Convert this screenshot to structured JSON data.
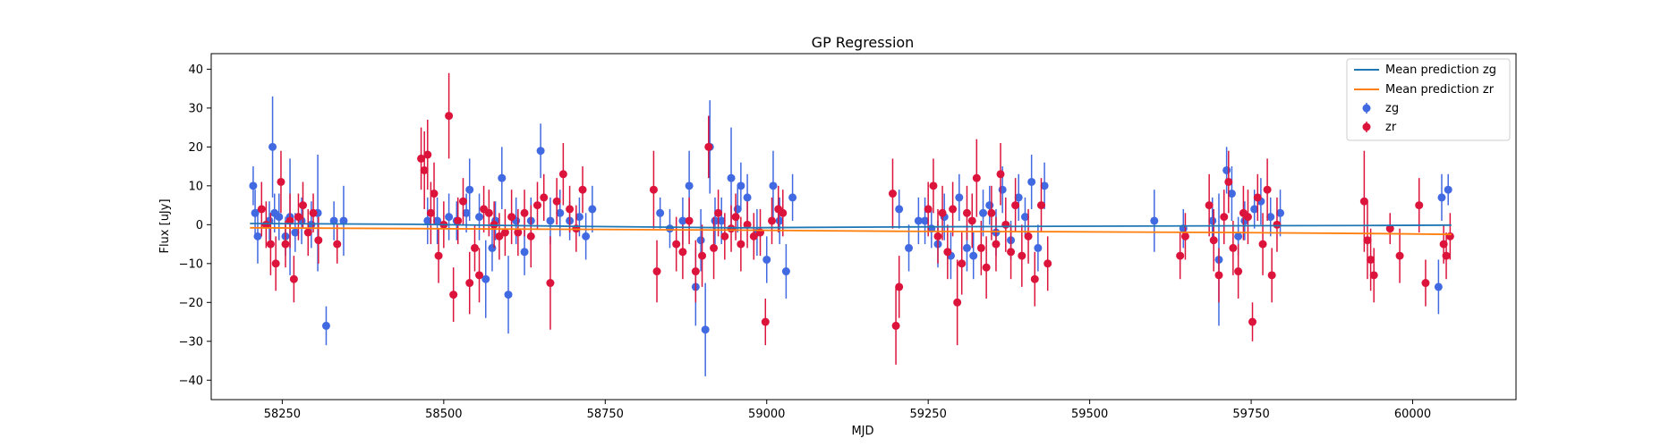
{
  "chart_data": {
    "type": "scatter",
    "title": "GP Regression",
    "xlabel": "MJD",
    "ylabel": "Flux [uJy]",
    "xlim": [
      58140,
      60160
    ],
    "ylim": [
      -45,
      44
    ],
    "xticks": [
      58250,
      58500,
      58750,
      59000,
      59250,
      59500,
      59750,
      60000
    ],
    "yticks": [
      -40,
      -30,
      -20,
      -10,
      0,
      10,
      20,
      30,
      40
    ],
    "legend_position": "top-right",
    "legend": [
      "Mean prediction zg",
      "Mean prediction zr",
      "zg",
      "zr"
    ],
    "colors": {
      "mean_zg": "#1f77b4",
      "mean_zr": "#ff7f0e",
      "zg": "#4169e1",
      "zr": "#dc143c"
    },
    "lines": [
      {
        "name": "Mean prediction zg",
        "x": [
          58200,
          58450,
          58700,
          58950,
          59200,
          59450,
          59700,
          59950,
          60060
        ],
        "y": [
          0.3,
          0.1,
          -0.4,
          -0.8,
          -0.6,
          -0.4,
          -0.3,
          -0.2,
          -0.1
        ]
      },
      {
        "name": "Mean prediction zr",
        "x": [
          58200,
          58450,
          58700,
          58950,
          59200,
          59450,
          59700,
          59950,
          60060
        ],
        "y": [
          -0.8,
          -1.0,
          -1.2,
          -1.4,
          -1.7,
          -1.8,
          -2.0,
          -2.3,
          -2.5
        ]
      }
    ],
    "series": [
      {
        "name": "zg",
        "x": [
          58205,
          58208,
          58212,
          58230,
          58235,
          58238,
          58245,
          58255,
          58262,
          58270,
          58280,
          58295,
          58305,
          58318,
          58330,
          58345,
          58475,
          58490,
          58508,
          58520,
          58535,
          58540,
          58555,
          58565,
          58575,
          58580,
          58590,
          58600,
          58612,
          58625,
          58635,
          58650,
          58665,
          58680,
          58695,
          58710,
          58720,
          58730,
          58835,
          58850,
          58870,
          58880,
          58890,
          58898,
          58905,
          58912,
          58920,
          58930,
          58945,
          58955,
          58960,
          58970,
          58985,
          59000,
          59010,
          59020,
          59030,
          59040,
          59205,
          59220,
          59235,
          59245,
          59255,
          59265,
          59275,
          59285,
          59298,
          59310,
          59320,
          59335,
          59345,
          59355,
          59365,
          59378,
          59390,
          59400,
          59410,
          59420,
          59430,
          59600,
          59645,
          59690,
          59700,
          59712,
          59720,
          59730,
          59740,
          59755,
          59765,
          59780,
          59795,
          60040,
          60045,
          60055
        ],
        "y": [
          10,
          3,
          -3,
          1,
          20,
          3,
          2,
          -3,
          2,
          -2,
          1,
          0,
          3,
          -26,
          1,
          1,
          1,
          1,
          2,
          1,
          3,
          9,
          2,
          -14,
          -6,
          1,
          12,
          -18,
          1,
          -7,
          1,
          19,
          1,
          3,
          1,
          2,
          -3,
          4,
          3,
          -1,
          1,
          10,
          -16,
          -4,
          -27,
          20,
          1,
          1,
          12,
          4,
          10,
          7,
          -2,
          -9,
          10,
          1,
          -12,
          7,
          4,
          -6,
          1,
          1,
          -1,
          -5,
          2,
          -8,
          7,
          -6,
          -8,
          3,
          5,
          -2,
          9,
          -4,
          7,
          2,
          11,
          -6,
          10,
          1,
          -1,
          1,
          -9,
          14,
          8,
          -3,
          1,
          4,
          6,
          2,
          3,
          -16,
          7,
          9
        ],
        "err": [
          5,
          6,
          7,
          5,
          13,
          5,
          6,
          5,
          15,
          5,
          6,
          6,
          15,
          5,
          5,
          9,
          6,
          6,
          6,
          5,
          5,
          8,
          6,
          10,
          6,
          5,
          8,
          10,
          6,
          6,
          6,
          7,
          6,
          6,
          5,
          5,
          6,
          6,
          4,
          5,
          6,
          9,
          10,
          8,
          12,
          12,
          6,
          6,
          13,
          6,
          6,
          6,
          6,
          6,
          9,
          6,
          7,
          6,
          5,
          6,
          6,
          6,
          5,
          6,
          6,
          6,
          6,
          6,
          6,
          6,
          5,
          6,
          6,
          5,
          6,
          5,
          7,
          6,
          6,
          8,
          5,
          6,
          17,
          6,
          7,
          5,
          5,
          5,
          6,
          5,
          6,
          7,
          6,
          4
        ]
      },
      {
        "name": "zr",
        "x": [
          58218,
          58225,
          58232,
          58240,
          58248,
          58255,
          58262,
          58268,
          58275,
          58282,
          58290,
          58298,
          58306,
          58335,
          58465,
          58470,
          58475,
          58480,
          58485,
          58492,
          58500,
          58508,
          58515,
          58522,
          58530,
          58540,
          58548,
          58555,
          58562,
          58570,
          58578,
          58586,
          58595,
          58605,
          58615,
          58625,
          58635,
          58645,
          58655,
          58665,
          58675,
          58685,
          58695,
          58705,
          58715,
          58825,
          58830,
          58860,
          58870,
          58880,
          58890,
          58900,
          58910,
          58918,
          58925,
          58935,
          58945,
          58952,
          58960,
          58970,
          58980,
          58990,
          58998,
          59008,
          59018,
          59025,
          59195,
          59200,
          59205,
          59250,
          59258,
          59265,
          59272,
          59280,
          59288,
          59295,
          59302,
          59310,
          59318,
          59325,
          59332,
          59340,
          59348,
          59355,
          59362,
          59370,
          59378,
          59385,
          59395,
          59405,
          59415,
          59425,
          59435,
          59640,
          59648,
          59685,
          59692,
          59700,
          59708,
          59715,
          59722,
          59730,
          59738,
          59745,
          59752,
          59760,
          59768,
          59775,
          59782,
          59790,
          59925,
          59930,
          59935,
          59940,
          59965,
          59980,
          60010,
          60020,
          60048,
          60052,
          60058
        ],
        "y": [
          4,
          0,
          -5,
          -10,
          11,
          -5,
          1,
          -14,
          2,
          5,
          -2,
          3,
          -4,
          -5,
          17,
          14,
          18,
          3,
          8,
          -8,
          0,
          28,
          -18,
          1,
          6,
          -15,
          -6,
          -13,
          4,
          3,
          0,
          -3,
          -2,
          2,
          -2,
          3,
          -3,
          5,
          7,
          -15,
          6,
          13,
          4,
          -1,
          9,
          9,
          -12,
          -5,
          -7,
          1,
          -12,
          -8,
          20,
          -6,
          3,
          -3,
          -1,
          2,
          -5,
          0,
          -3,
          -2,
          -25,
          1,
          4,
          3,
          8,
          -26,
          -16,
          4,
          10,
          -3,
          3,
          -7,
          4,
          -20,
          -10,
          3,
          1,
          12,
          -6,
          -11,
          3,
          -5,
          13,
          0,
          -7,
          5,
          -8,
          -3,
          -14,
          5,
          -10,
          -8,
          -3,
          5,
          -4,
          -13,
          2,
          11,
          -6,
          -12,
          3,
          2,
          -25,
          7,
          -5,
          9,
          -13,
          0,
          6,
          -4,
          -9,
          -13,
          -1,
          -8,
          5,
          -15,
          -5,
          -8,
          -3
        ],
        "err": [
          7,
          6,
          8,
          7,
          8,
          6,
          7,
          6,
          6,
          6,
          6,
          5,
          6,
          5,
          8,
          10,
          9,
          8,
          8,
          7,
          6,
          11,
          7,
          6,
          6,
          8,
          6,
          7,
          6,
          6,
          6,
          6,
          6,
          7,
          6,
          6,
          8,
          6,
          6,
          12,
          6,
          8,
          6,
          6,
          6,
          10,
          8,
          7,
          7,
          6,
          8,
          8,
          8,
          8,
          6,
          6,
          6,
          6,
          7,
          6,
          6,
          6,
          6,
          6,
          6,
          6,
          9,
          10,
          8,
          7,
          7,
          7,
          7,
          7,
          7,
          11,
          8,
          7,
          7,
          10,
          7,
          8,
          7,
          7,
          8,
          7,
          7,
          7,
          8,
          7,
          7,
          7,
          7,
          6,
          6,
          8,
          8,
          7,
          7,
          8,
          7,
          7,
          7,
          7,
          5,
          6,
          8,
          8,
          7,
          7,
          13,
          10,
          8,
          7,
          4,
          7,
          7,
          6,
          5,
          6,
          6
        ]
      }
    ]
  }
}
